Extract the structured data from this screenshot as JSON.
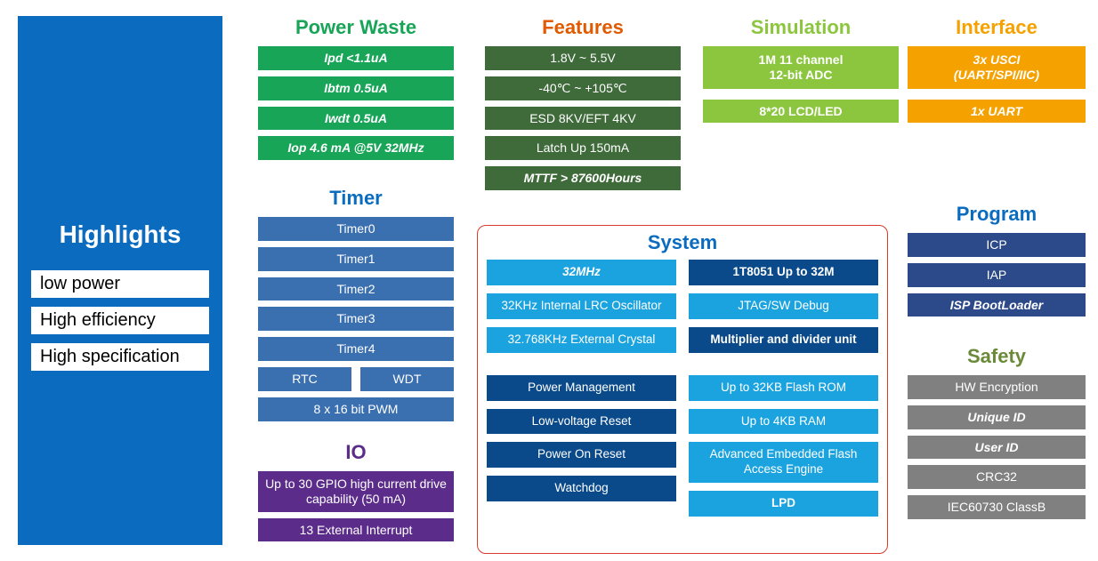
{
  "colors": {
    "sidebar_bg": "#0b6cbf",
    "green_bright": "#18a558",
    "green_dark": "#3f6b3a",
    "lime": "#8cc63f",
    "orange": "#f5a100",
    "blue_dark": "#2c4a8a",
    "blue_mid": "#3a6fb0",
    "purple": "#5b2c8a",
    "cyan": "#1ba3e0",
    "navy": "#0a4a8a",
    "gray": "#808080",
    "heading_green": "#18a558",
    "heading_orange": "#e05a00",
    "heading_lime": "#8cc63f",
    "heading_amber": "#f5a100",
    "heading_blue": "#0b6cbf",
    "heading_purple": "#5b2c8a",
    "heading_olive": "#6a8a3a",
    "system_border": "#d93a2b"
  },
  "sidebar": {
    "title": "Highlights",
    "items": [
      "low power",
      "High efficiency",
      "High specification"
    ]
  },
  "power_waste": {
    "heading": "Power Waste",
    "items": [
      "Ipd <1.1uA",
      "Ibtm 0.5uA",
      "Iwdt 0.5uA",
      "Iop 4.6 mA @5V 32MHz"
    ]
  },
  "timer": {
    "heading": "Timer",
    "items": [
      "Timer0",
      "Timer1",
      "Timer2",
      "Timer3",
      "Timer4"
    ],
    "split": [
      "RTC",
      "WDT"
    ],
    "last": "8 x 16 bit PWM"
  },
  "io": {
    "heading": "IO",
    "items": [
      "Up to 30 GPIO high current drive capability (50 mA)",
      "13  External Interrupt"
    ]
  },
  "features": {
    "heading": "Features",
    "items": [
      "1.8V ~  5.5V",
      "-40℃ ~ +105℃",
      "ESD 8KV/EFT 4KV",
      "Latch Up 150mA",
      "MTTF > 87600Hours"
    ]
  },
  "simulation": {
    "heading": "Simulation",
    "items": [
      "1M 11 channel\n12-bit ADC",
      "8*20 LCD/LED"
    ]
  },
  "interface": {
    "heading": "Interface",
    "items": [
      "3x USCI\n(UART/SPI/IIC)",
      "1x UART"
    ]
  },
  "program": {
    "heading": "Program",
    "items": [
      "ICP",
      "IAP",
      "ISP BootLoader"
    ]
  },
  "safety": {
    "heading": "Safety",
    "items": [
      "HW Encryption",
      "Unique ID",
      "User ID",
      "CRC32",
      "IEC60730 ClassB"
    ]
  },
  "system": {
    "heading": "System",
    "left": [
      {
        "text": "32MHz",
        "bg": "cyan",
        "italic": true,
        "bold": true
      },
      {
        "text": "32KHz Internal LRC Oscillator",
        "bg": "cyan"
      },
      {
        "text": "32.768KHz External  Crystal",
        "bg": "cyan"
      },
      {
        "text": "Power Management",
        "bg": "navy",
        "spacer_before": true
      },
      {
        "text": "Low-voltage Reset",
        "bg": "navy"
      },
      {
        "text": "Power On Reset",
        "bg": "navy"
      },
      {
        "text": "Watchdog",
        "bg": "navy"
      }
    ],
    "right": [
      {
        "text": "1T8051 Up to 32M",
        "bg": "navy",
        "bold": true
      },
      {
        "text": "JTAG/SW Debug",
        "bg": "cyan"
      },
      {
        "text": "Multiplier and divider unit",
        "bg": "navy",
        "bold": true
      },
      {
        "text": "Up to 32KB Flash ROM",
        "bg": "cyan",
        "spacer_before": true
      },
      {
        "text": "Up to 4KB RAM",
        "bg": "cyan"
      },
      {
        "text": "Advanced Embedded Flash Access Engine",
        "bg": "cyan"
      },
      {
        "text": "LPD",
        "bg": "cyan",
        "bold": true
      }
    ]
  }
}
